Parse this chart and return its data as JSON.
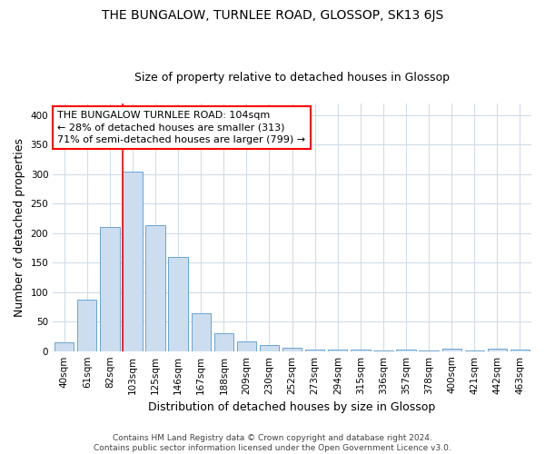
{
  "title": "THE BUNGALOW, TURNLEE ROAD, GLOSSOP, SK13 6JS",
  "subtitle": "Size of property relative to detached houses in Glossop",
  "xlabel": "Distribution of detached houses by size in Glossop",
  "ylabel": "Number of detached properties",
  "bar_color": "#ccddf0",
  "bar_edge_color": "#5599cc",
  "categories": [
    "40sqm",
    "61sqm",
    "82sqm",
    "103sqm",
    "125sqm",
    "146sqm",
    "167sqm",
    "188sqm",
    "209sqm",
    "230sqm",
    "252sqm",
    "273sqm",
    "294sqm",
    "315sqm",
    "336sqm",
    "357sqm",
    "378sqm",
    "400sqm",
    "421sqm",
    "442sqm",
    "463sqm"
  ],
  "values": [
    15,
    88,
    210,
    305,
    213,
    160,
    64,
    30,
    17,
    10,
    6,
    3,
    3,
    2,
    1,
    3,
    1,
    4,
    1,
    4,
    2
  ],
  "ylim": [
    0,
    420
  ],
  "yticks": [
    0,
    50,
    100,
    150,
    200,
    250,
    300,
    350,
    400
  ],
  "redline_index": 3,
  "annotation_line1": "THE BUNGALOW TURNLEE ROAD: 104sqm",
  "annotation_line2": "← 28% of detached houses are smaller (313)",
  "annotation_line3": "71% of semi-detached houses are larger (799) →",
  "footer_line1": "Contains HM Land Registry data © Crown copyright and database right 2024.",
  "footer_line2": "Contains public sector information licensed under the Open Government Licence v3.0.",
  "background_color": "#ffffff",
  "grid_color": "#d0dce8",
  "title_fontsize": 10,
  "subtitle_fontsize": 9,
  "axis_label_fontsize": 9,
  "tick_fontsize": 7.5,
  "annotation_fontsize": 8,
  "footer_fontsize": 6.5
}
